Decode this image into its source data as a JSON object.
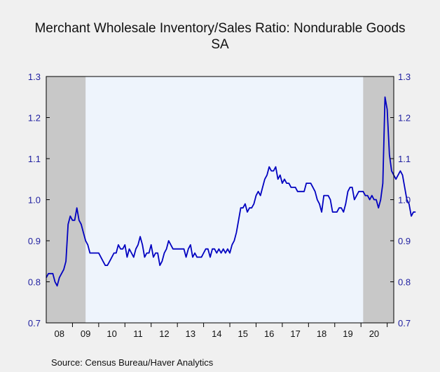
{
  "chart_data": {
    "type": "line",
    "title": "Merchant Wholesale Inventory/Sales Ratio: Nondurable Goods",
    "subtitle": "SA",
    "source": "Source:  Census Bureau/Haver Analytics",
    "ylim": [
      0.7,
      1.3
    ],
    "yticks": [
      "0.7",
      "0.8",
      "0.9",
      "1.0",
      "1.1",
      "1.2",
      "1.3"
    ],
    "xticks": [
      "08",
      "09",
      "10",
      "11",
      "12",
      "13",
      "14",
      "15",
      "16",
      "17",
      "18",
      "19",
      "20"
    ],
    "recessions": [
      {
        "start": "2008-01",
        "end": "2009-06"
      },
      {
        "start": "2020-02",
        "end": "2021-03"
      }
    ],
    "series": [
      {
        "start": "2008-01",
        "values": [
          0.81,
          0.82,
          0.82,
          0.82,
          0.8,
          0.79,
          0.81,
          0.82,
          0.83,
          0.85,
          0.94,
          0.96,
          0.95,
          0.95,
          0.98,
          0.95,
          0.94,
          0.92,
          0.9,
          0.89,
          0.87,
          0.87,
          0.87,
          0.87,
          0.87,
          0.86,
          0.85,
          0.84,
          0.84,
          0.85,
          0.86,
          0.87,
          0.87,
          0.89,
          0.88,
          0.88,
          0.89,
          0.86,
          0.88,
          0.87,
          0.86,
          0.88,
          0.89,
          0.91,
          0.89,
          0.86,
          0.87,
          0.87,
          0.89,
          0.86,
          0.87,
          0.87,
          0.84,
          0.85,
          0.87,
          0.88,
          0.9,
          0.89,
          0.88,
          0.88,
          0.88,
          0.88,
          0.88,
          0.88,
          0.86,
          0.88,
          0.89,
          0.86,
          0.87,
          0.86,
          0.86,
          0.86,
          0.87,
          0.88,
          0.88,
          0.86,
          0.88,
          0.88,
          0.87,
          0.88,
          0.87,
          0.88,
          0.87,
          0.88,
          0.87,
          0.89,
          0.9,
          0.92,
          0.95,
          0.98,
          0.98,
          0.99,
          0.97,
          0.98,
          0.98,
          0.99,
          1.01,
          1.02,
          1.01,
          1.03,
          1.05,
          1.06,
          1.08,
          1.07,
          1.07,
          1.08,
          1.05,
          1.06,
          1.04,
          1.05,
          1.04,
          1.04,
          1.03,
          1.03,
          1.03,
          1.02,
          1.02,
          1.02,
          1.02,
          1.04,
          1.04,
          1.04,
          1.03,
          1.02,
          1.0,
          0.99,
          0.97,
          1.01,
          1.01,
          1.01,
          1.0,
          0.97,
          0.97,
          0.97,
          0.98,
          0.98,
          0.97,
          0.99,
          1.02,
          1.03,
          1.03,
          1.0,
          1.01,
          1.02,
          1.02,
          1.02,
          1.01,
          1.01,
          1.0,
          1.01,
          1.0,
          1.0,
          0.98,
          1.0,
          1.04,
          1.25,
          1.22,
          1.11,
          1.07,
          1.06,
          1.05,
          1.06,
          1.07,
          1.06,
          1.03,
          1.0,
          0.99,
          0.96,
          0.97,
          0.97
        ]
      }
    ],
    "colors": {
      "line": "#0000c0",
      "recession": "#c8c8c8",
      "plot_bg": "#eef4fc",
      "axis_text": "#2020a0"
    }
  }
}
